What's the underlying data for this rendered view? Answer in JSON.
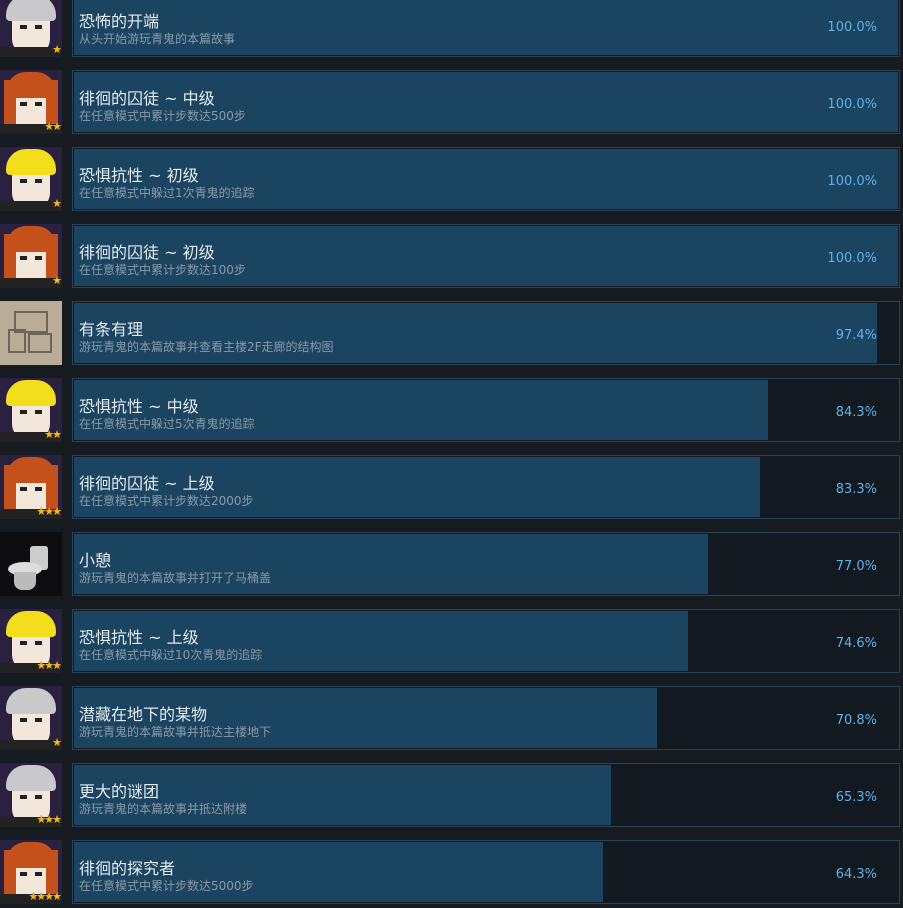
{
  "achievements": [
    {
      "title": "恐怖的开端",
      "desc": "从头开始游玩青鬼的本篇故事",
      "percent": "100.0%",
      "value": 100.0,
      "icon": "silver-hair-glasses-boy",
      "stars": "★"
    },
    {
      "title": "徘徊的囚徒 ~ 中级",
      "desc": "在任意模式中累计步数达500步",
      "percent": "100.0%",
      "value": 100.0,
      "icon": "orange-hair-girl",
      "stars": "★★"
    },
    {
      "title": "恐惧抗性 ~ 初级",
      "desc": "在任意模式中躲过1次青鬼的追踪",
      "percent": "100.0%",
      "value": 100.0,
      "icon": "blond-boy",
      "stars": "★"
    },
    {
      "title": "徘徊的囚徒 ~ 初级",
      "desc": "在任意模式中累计步数达100步",
      "percent": "100.0%",
      "value": 100.0,
      "icon": "orange-hair-girl",
      "stars": "★"
    },
    {
      "title": "有条有理",
      "desc": "游玩青鬼的本篇故事并查看主楼2F走廊的结构图",
      "percent": "97.4%",
      "value": 97.4,
      "icon": "floor-map",
      "stars": ""
    },
    {
      "title": "恐惧抗性 ~ 中级",
      "desc": "在任意模式中躲过5次青鬼的追踪",
      "percent": "84.3%",
      "value": 84.3,
      "icon": "blond-boy",
      "stars": "★★"
    },
    {
      "title": "徘徊的囚徒 ~ 上级",
      "desc": "在任意模式中累计步数达2000步",
      "percent": "83.3%",
      "value": 83.3,
      "icon": "orange-hair-girl",
      "stars": "★★★"
    },
    {
      "title": "小憩",
      "desc": "游玩青鬼的本篇故事并打开了马桶盖",
      "percent": "77.0%",
      "value": 77.0,
      "icon": "toilet",
      "stars": ""
    },
    {
      "title": "恐惧抗性 ~ 上级",
      "desc": "在任意模式中躲过10次青鬼的追踪",
      "percent": "74.6%",
      "value": 74.6,
      "icon": "blond-boy",
      "stars": "★★★"
    },
    {
      "title": "潜藏在地下的某物",
      "desc": "游玩青鬼的本篇故事并抵达主楼地下",
      "percent": "70.8%",
      "value": 70.8,
      "icon": "silver-hair-glasses-boy",
      "stars": "★"
    },
    {
      "title": "更大的谜团",
      "desc": "游玩青鬼的本篇故事并抵达附楼",
      "percent": "65.3%",
      "value": 65.3,
      "icon": "silver-hair-glasses-boy",
      "stars": "★★★"
    },
    {
      "title": "徘徊的探究者",
      "desc": "在任意模式中累计步数达5000步",
      "percent": "64.3%",
      "value": 64.3,
      "icon": "orange-hair-girl",
      "stars": "★★★★"
    }
  ],
  "colors": {
    "fill": "#1a4460",
    "percent": "#5fb2e6",
    "background": "#161b22"
  }
}
